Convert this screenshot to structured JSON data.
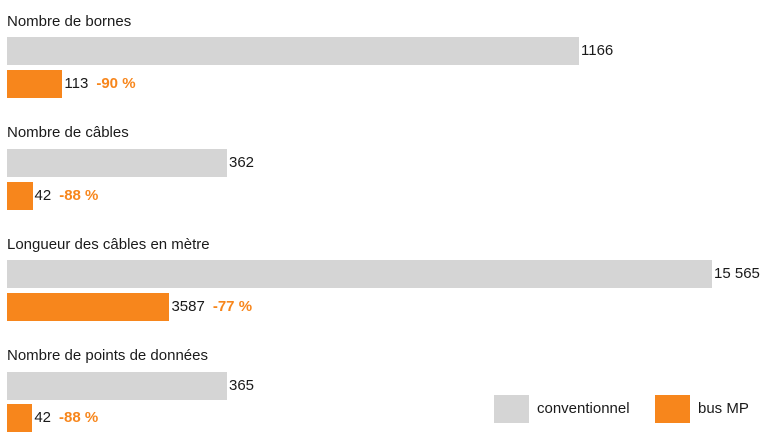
{
  "chart_data": {
    "type": "bar",
    "orientation": "horizontal",
    "categories": [
      "Nombre de bornes",
      "Nombre de câbles",
      "Longueur des câbles en mètre",
      "Nombre de points de données"
    ],
    "series": [
      {
        "name": "conventionnel",
        "color": "#d5d5d5",
        "values": [
          1166,
          362,
          15565,
          365
        ],
        "labels": [
          "1166",
          "362",
          "15 565",
          "365"
        ]
      },
      {
        "name": "bus MP",
        "color": "#f7861c",
        "values": [
          113,
          42,
          3587,
          42
        ],
        "labels": [
          "113",
          "42",
          "3587",
          "42"
        ],
        "reductions": [
          "-90 %",
          "-88 %",
          "-77 %",
          "-88 %"
        ]
      }
    ],
    "legend": {
      "position": "bottom-right",
      "items": [
        "conventionnel",
        "bus MP"
      ]
    }
  }
}
